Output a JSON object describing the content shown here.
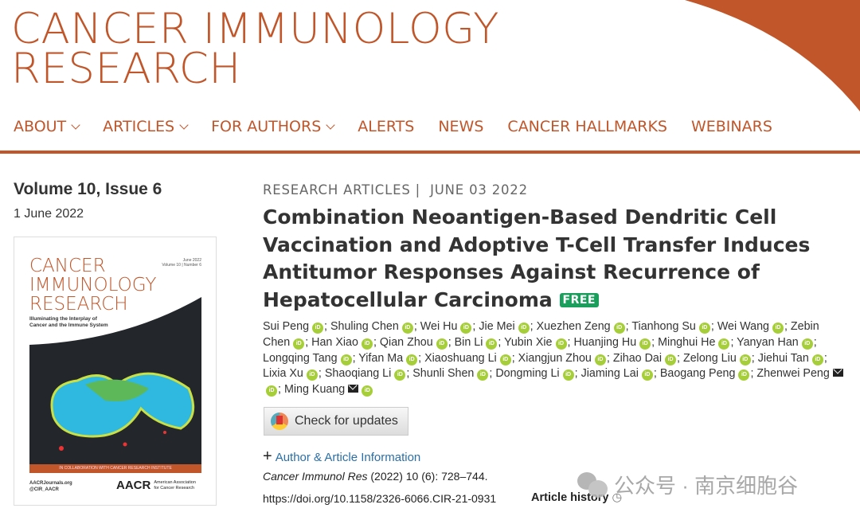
{
  "brand": {
    "line1": "CANCER IMMUNOLOGY",
    "line2": "RESEARCH"
  },
  "colors": {
    "accent": "#c0562a",
    "free": "#1a9e5c",
    "orcid": "#a6ce39",
    "link": "#2a6fa8"
  },
  "nav": [
    {
      "label": "ABOUT",
      "dropdown": true
    },
    {
      "label": "ARTICLES",
      "dropdown": true
    },
    {
      "label": "FOR AUTHORS",
      "dropdown": true
    },
    {
      "label": "ALERTS"
    },
    {
      "label": "NEWS"
    },
    {
      "label": "CANCER HALLMARKS"
    },
    {
      "label": "WEBINARS"
    }
  ],
  "issue": {
    "title": "Volume 10, Issue 6",
    "date": "1 June 2022"
  },
  "cover": {
    "title1": "CANCER",
    "title2": "IMMUNOLOGY",
    "title3": "RESEARCH",
    "meta1": "June 2022",
    "meta2": "Volume 10 | Number 6",
    "subtitle1": "Illuminating the Interplay of",
    "subtitle2": "Cancer and the Immune System",
    "band": "IN COLLABORATION WITH CANCER RESEARCH INSTITUTE",
    "link1": "AACRJournals.org",
    "link2": "@CIR_AACR",
    "logo": "AACR",
    "logo_sub1": "American Association",
    "logo_sub2": "for Cancer Research"
  },
  "article": {
    "category": "RESEARCH ARTICLES",
    "separator": "|",
    "date": "JUNE 03 2022",
    "title": "Combination Neoantigen-Based Dendritic Cell Vaccination and Adoptive T-Cell Transfer Induces Antitumor Responses Against Recurrence of Hepatocellular Carcinoma",
    "free_badge": "FREE",
    "authors": [
      {
        "name": "Sui Peng"
      },
      {
        "name": "Shuling Chen"
      },
      {
        "name": "Wei Hu"
      },
      {
        "name": "Jie Mei"
      },
      {
        "name": "Xuezhen Zeng"
      },
      {
        "name": "Tianhong Su"
      },
      {
        "name": "Wei Wang"
      },
      {
        "name": "Zebin Chen"
      },
      {
        "name": "Han Xiao"
      },
      {
        "name": "Qian Zhou"
      },
      {
        "name": "Bin Li"
      },
      {
        "name": "Yubin Xie"
      },
      {
        "name": "Huanjing Hu"
      },
      {
        "name": "Minghui He"
      },
      {
        "name": "Yanyan Han"
      },
      {
        "name": "Longqing Tang"
      },
      {
        "name": "Yifan Ma"
      },
      {
        "name": "Xiaoshuang Li"
      },
      {
        "name": "Xiangjun Zhou"
      },
      {
        "name": "Zihao Dai"
      },
      {
        "name": "Zelong Liu"
      },
      {
        "name": "Jiehui Tan"
      },
      {
        "name": "Lixia Xu"
      },
      {
        "name": "Shaoqiang Li"
      },
      {
        "name": "Shunli Shen"
      },
      {
        "name": "Dongming Li"
      },
      {
        "name": "Jiaming Lai"
      },
      {
        "name": "Baogang Peng"
      },
      {
        "name": "Zhenwei Peng",
        "email": true
      },
      {
        "name": "Ming Kuang",
        "email": true
      }
    ],
    "orcid_label": "iD",
    "check_updates": "Check for updates",
    "author_info": "Author & Article Information",
    "plus": "+",
    "citation_journal": "Cancer Immunol Res",
    "citation_rest": " (2022) 10 (6): 728–744.",
    "doi": "https://doi.org/10.1158/2326-6066.CIR-21-0931",
    "history": "Article history"
  },
  "watermark": "公众号 · 南京细胞谷"
}
